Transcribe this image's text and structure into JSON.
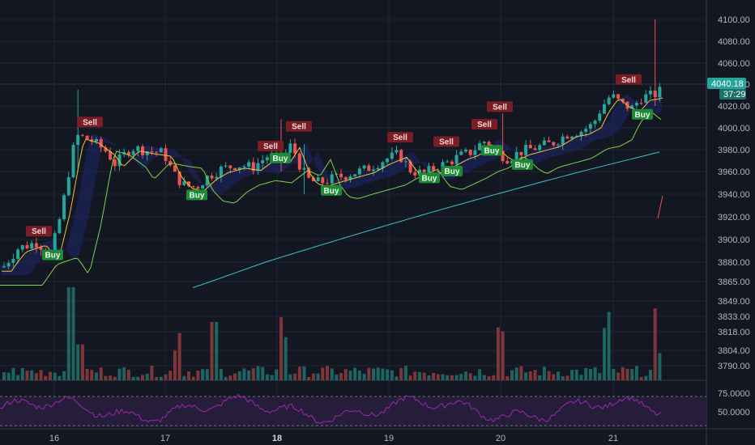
{
  "chart_data": {
    "type": "candlestick",
    "price_axis": {
      "ticks": [
        "4100.00",
        "4080.00",
        "4060.00",
        "4040.00",
        "4020.00",
        "4000.00",
        "3980.00",
        "3960.00",
        "3940.00",
        "3920.00",
        "3900.00",
        "3880.00",
        "3865.00",
        "3849.00",
        "3833.00",
        "3818.00",
        "3804.00",
        "3790.00"
      ],
      "tick_values": [
        4100,
        4080,
        4060,
        4040,
        4020,
        4000,
        3980,
        3960,
        3940,
        3920,
        3900,
        3880,
        3865,
        3849,
        3833,
        3818,
        3804,
        3790
      ]
    },
    "x_axis": {
      "labels": [
        "16",
        "17",
        "18",
        "19",
        "20",
        "21"
      ],
      "bold_labels": [
        "18"
      ]
    },
    "current_price": {
      "value": 4040.18,
      "label": "4040.18",
      "countdown": "37:29",
      "color": "#26a69a"
    },
    "rsi_axis": {
      "ticks": [
        "75.0000",
        "50.0000"
      ],
      "levels": [
        70,
        30
      ]
    },
    "colors": {
      "background": "#131722",
      "up": "#26a69a",
      "down": "#ef5350",
      "ma_fast": "#f0c23b",
      "ma_mid": "#7cd44a",
      "ma_slow": "#3fc1c9",
      "cloud": "#1f2a7a",
      "rsi": "#9c27b0",
      "rsi_band": "#2a1e3f",
      "buy_bg": "#1e8a35",
      "sell_bg": "#7a1e25"
    },
    "signals": [
      {
        "text": "Sell",
        "type": "sell",
        "x": 48,
        "price": 3907
      },
      {
        "text": "Buy",
        "type": "buy",
        "x": 65,
        "price": 3886
      },
      {
        "text": "Sell",
        "type": "sell",
        "x": 111,
        "price": 4005
      },
      {
        "text": "Buy",
        "type": "buy",
        "x": 243,
        "price": 3939
      },
      {
        "text": "Sell",
        "type": "sell",
        "x": 334,
        "price": 3983
      },
      {
        "text": "Buy",
        "type": "buy",
        "x": 346,
        "price": 3972
      },
      {
        "text": "Sell",
        "type": "sell",
        "x": 369,
        "price": 4001
      },
      {
        "text": "Buy",
        "type": "buy",
        "x": 409,
        "price": 3943
      },
      {
        "text": "Sell",
        "type": "sell",
        "x": 494,
        "price": 3991
      },
      {
        "text": "Buy",
        "type": "buy",
        "x": 530,
        "price": 3954
      },
      {
        "text": "Sell",
        "type": "sell",
        "x": 551,
        "price": 3987
      },
      {
        "text": "Buy",
        "type": "buy",
        "x": 558,
        "price": 3960
      },
      {
        "text": "Sell",
        "type": "sell",
        "x": 598,
        "price": 4003
      },
      {
        "text": "Buy",
        "type": "buy",
        "x": 607,
        "price": 3979
      },
      {
        "text": "Sell",
        "type": "sell",
        "x": 617,
        "price": 4019
      },
      {
        "text": "Buy",
        "type": "buy",
        "x": 645,
        "price": 3966
      },
      {
        "text": "Sell",
        "type": "sell",
        "x": 776,
        "price": 4044
      },
      {
        "text": "Buy",
        "type": "buy",
        "x": 793,
        "price": 4012
      }
    ]
  }
}
